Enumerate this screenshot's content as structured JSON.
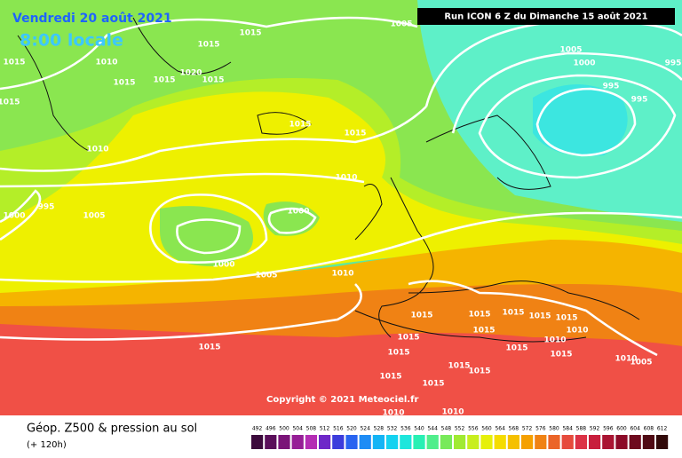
{
  "header": {
    "date": "Vendredi 20 août 2021",
    "time": "8:00 locale",
    "run": "Run ICON 6 Z du Dimanche 15 août 2021"
  },
  "map": {
    "isobar_labels": [
      1015,
      1015,
      1015,
      1010,
      1015,
      1015,
      1020,
      1015,
      1005,
      1005,
      1000,
      995,
      995,
      995,
      1015,
      1015,
      1015,
      1010,
      1010,
      995,
      1000,
      1005,
      1000,
      1000,
      1005,
      1010,
      1015,
      1015,
      1015,
      1015,
      1015,
      1015,
      1015,
      1015,
      1010,
      1015,
      1015,
      1010,
      1015,
      1015,
      1015,
      1015,
      1015,
      1010,
      1005,
      1010,
      1010
    ],
    "copyright": "Copyright © 2021 Meteociel.fr"
  },
  "legend": {
    "title": "Géop. Z500 & pression au sol",
    "subtitle": "(+ 120h)",
    "values": [
      492,
      496,
      500,
      504,
      508,
      512,
      516,
      520,
      524,
      528,
      532,
      536,
      540,
      544,
      548,
      552,
      556,
      560,
      564,
      568,
      572,
      576,
      580,
      584,
      588,
      592,
      596,
      600,
      604,
      608,
      612
    ],
    "colors": [
      "#3c0a3c",
      "#5a0f5a",
      "#7a1478",
      "#961e96",
      "#b42db4",
      "#6e28c8",
      "#3c3cdc",
      "#2864f0",
      "#1e8cf5",
      "#14b4f5",
      "#14d2f0",
      "#1ee6dc",
      "#28f0b4",
      "#50ee8c",
      "#78ea5a",
      "#a0ea32",
      "#c8ee1e",
      "#e6f00a",
      "#f5dc00",
      "#f5c000",
      "#f5a000",
      "#f08214",
      "#eb6428",
      "#e64b3c",
      "#dc3246",
      "#c81e3c",
      "#aa1432",
      "#8c0a28",
      "#6e0a1e",
      "#500a14",
      "#320a0a"
    ]
  }
}
